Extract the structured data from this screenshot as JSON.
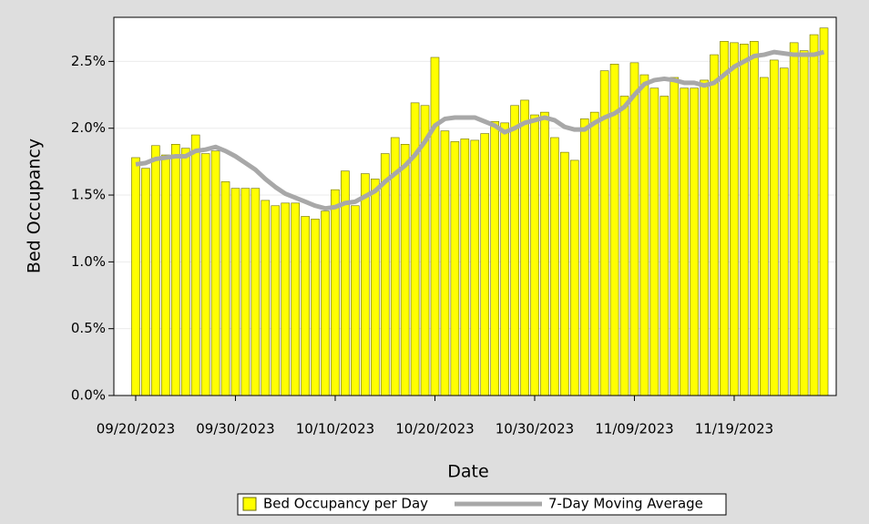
{
  "chart_data": {
    "type": "bar_line",
    "x_label": "Date",
    "y_label": "Bed Occupancy",
    "categories": [
      "09/20/2023",
      "09/21/2023",
      "09/22/2023",
      "09/23/2023",
      "09/24/2023",
      "09/25/2023",
      "09/26/2023",
      "09/27/2023",
      "09/28/2023",
      "09/29/2023",
      "09/30/2023",
      "10/01/2023",
      "10/02/2023",
      "10/03/2023",
      "10/04/2023",
      "10/05/2023",
      "10/06/2023",
      "10/07/2023",
      "10/08/2023",
      "10/09/2023",
      "10/10/2023",
      "10/11/2023",
      "10/12/2023",
      "10/13/2023",
      "10/14/2023",
      "10/15/2023",
      "10/16/2023",
      "10/17/2023",
      "10/18/2023",
      "10/19/2023",
      "10/20/2023",
      "10/21/2023",
      "10/22/2023",
      "10/23/2023",
      "10/24/2023",
      "10/25/2023",
      "10/26/2023",
      "10/27/2023",
      "10/28/2023",
      "10/29/2023",
      "10/30/2023",
      "10/31/2023",
      "11/01/2023",
      "11/02/2023",
      "11/03/2023",
      "11/04/2023",
      "11/05/2023",
      "11/06/2023",
      "11/07/2023",
      "11/08/2023",
      "11/09/2023",
      "11/10/2023",
      "11/11/2023",
      "11/12/2023",
      "11/13/2023",
      "11/14/2023",
      "11/15/2023",
      "11/16/2023",
      "11/17/2023",
      "11/18/2023",
      "11/19/2023",
      "11/20/2023",
      "11/21/2023",
      "11/22/2023",
      "11/23/2023",
      "11/24/2023",
      "11/25/2023",
      "11/26/2023",
      "11/27/2023",
      "11/28/2023"
    ],
    "xticks": [
      "09/20/2023",
      "09/30/2023",
      "10/10/2023",
      "10/20/2023",
      "10/30/2023",
      "11/09/2023",
      "11/19/2023"
    ],
    "series": [
      {
        "name": "Bed Occupancy per Day",
        "type": "bar",
        "color": "#ffff00",
        "values": [
          1.78,
          1.7,
          1.87,
          1.8,
          1.88,
          1.85,
          1.95,
          1.81,
          1.83,
          1.6,
          1.55,
          1.55,
          1.55,
          1.46,
          1.42,
          1.44,
          1.44,
          1.34,
          1.32,
          1.38,
          1.54,
          1.68,
          1.42,
          1.66,
          1.62,
          1.81,
          1.93,
          1.88,
          2.19,
          2.17,
          2.53,
          1.98,
          1.9,
          1.92,
          1.91,
          1.96,
          2.05,
          2.04,
          2.17,
          2.21,
          2.1,
          2.12,
          1.93,
          1.82,
          1.76,
          2.07,
          2.12,
          2.43,
          2.48,
          2.24,
          2.49,
          2.4,
          2.3,
          2.24,
          2.38,
          2.3,
          2.3,
          2.36,
          2.55,
          2.65,
          2.64,
          2.63,
          2.65,
          2.38,
          2.51,
          2.45,
          2.64,
          2.58,
          2.7,
          2.75
        ]
      },
      {
        "name": "7-Day Moving Average",
        "type": "line",
        "color": "#a8a8a8",
        "values": [
          1.73,
          1.74,
          1.77,
          1.78,
          1.79,
          1.79,
          1.83,
          1.84,
          1.86,
          1.83,
          1.79,
          1.74,
          1.69,
          1.62,
          1.56,
          1.51,
          1.48,
          1.45,
          1.42,
          1.4,
          1.41,
          1.44,
          1.45,
          1.49,
          1.53,
          1.6,
          1.66,
          1.72,
          1.8,
          1.9,
          2.02,
          2.07,
          2.08,
          2.08,
          2.08,
          2.05,
          2.02,
          1.97,
          2.0,
          2.04,
          2.06,
          2.08,
          2.06,
          2.01,
          1.99,
          1.99,
          2.04,
          2.08,
          2.11,
          2.16,
          2.25,
          2.33,
          2.36,
          2.37,
          2.36,
          2.34,
          2.34,
          2.32,
          2.34,
          2.4,
          2.46,
          2.5,
          2.54,
          2.55,
          2.57,
          2.56,
          2.55,
          2.55,
          2.55,
          2.57
        ]
      }
    ],
    "ylim": [
      0,
      2.83
    ],
    "yticks": [
      {
        "value": 0,
        "label": "0.0%"
      },
      {
        "value": 0.5,
        "label": "0.5%"
      },
      {
        "value": 1.0,
        "label": "1.0%"
      },
      {
        "value": 1.5,
        "label": "1.5%"
      },
      {
        "value": 2.0,
        "label": "2.0%"
      },
      {
        "value": 2.5,
        "label": "2.5%"
      }
    ],
    "grid": true,
    "legend": "bottom"
  }
}
